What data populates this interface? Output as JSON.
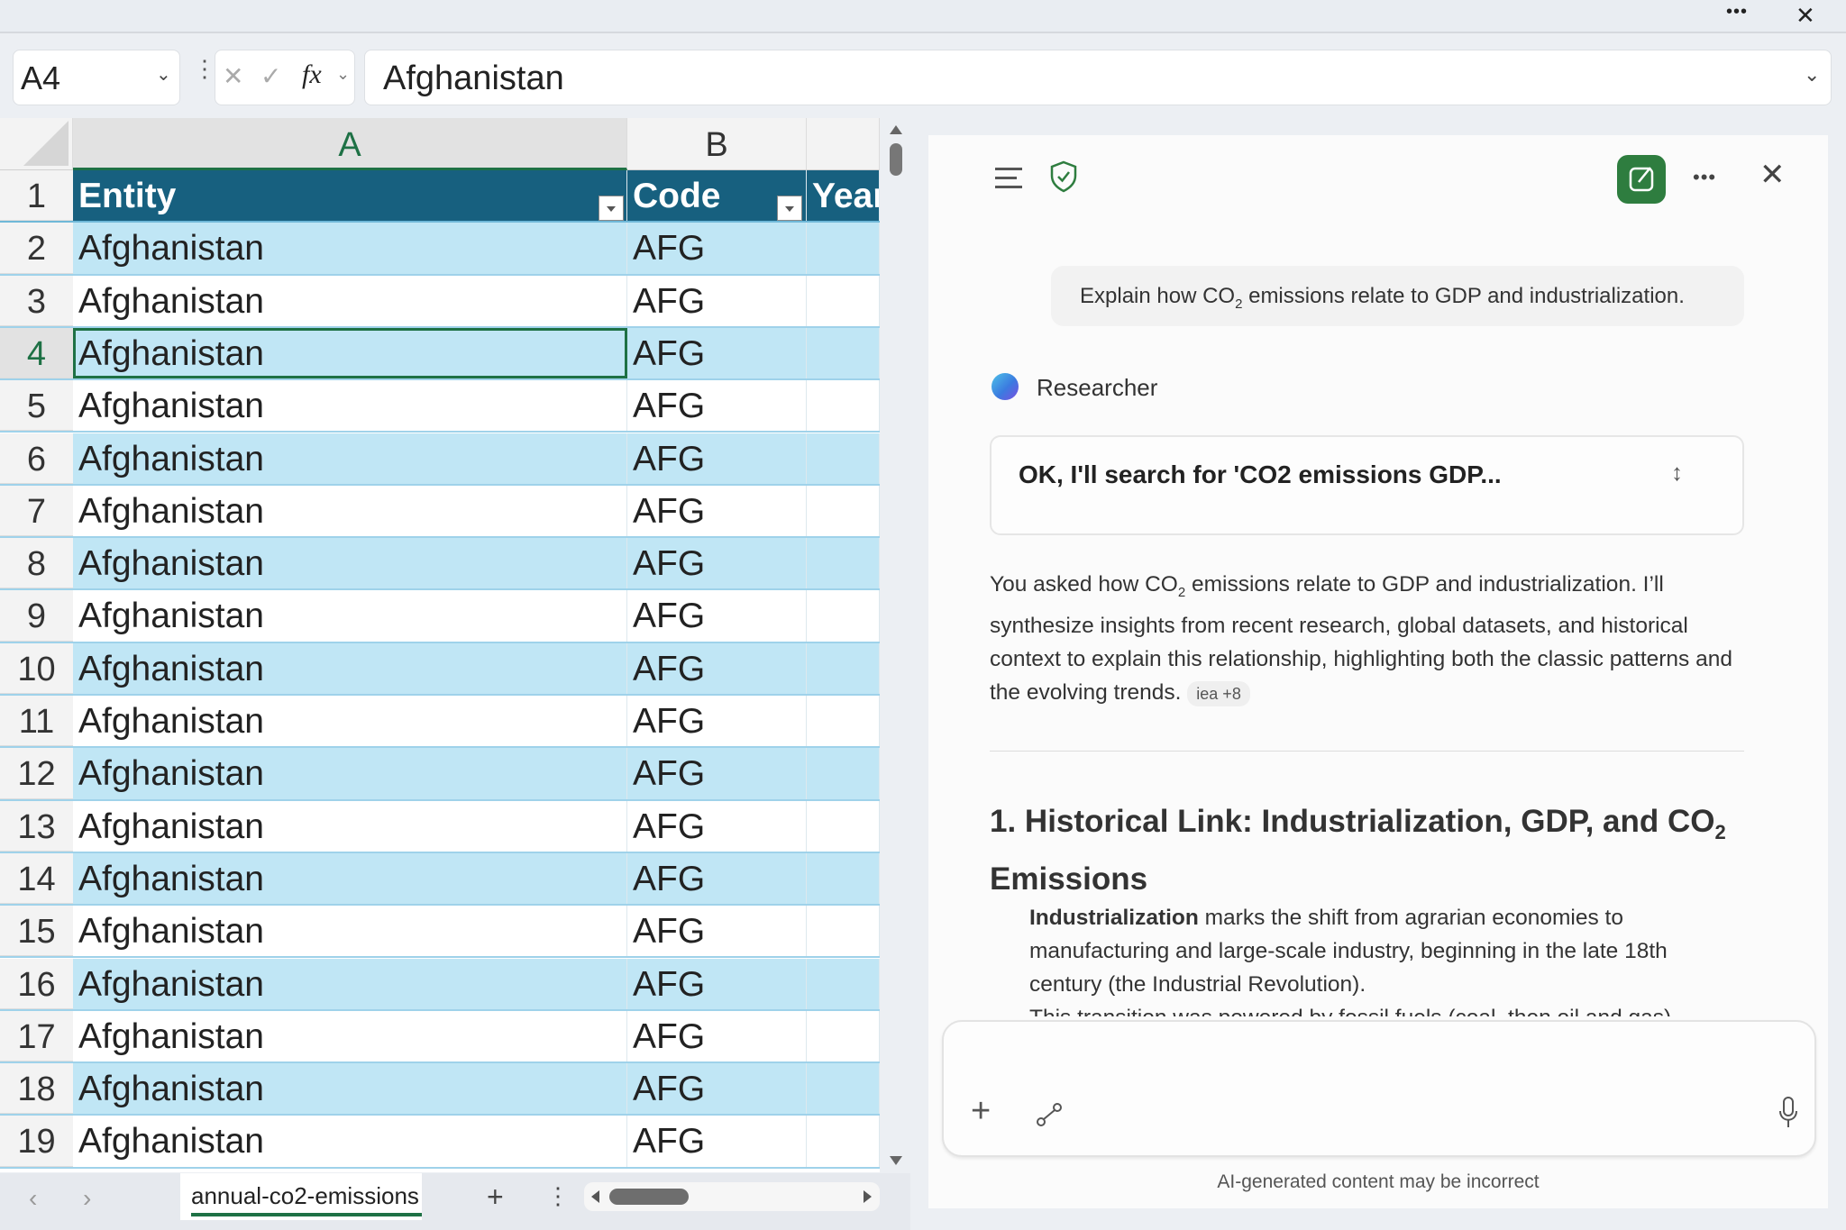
{
  "titlebar": {
    "more": "•••",
    "close": "✕"
  },
  "formula_bar": {
    "name_box": "A4",
    "cancel": "✕",
    "enter": "✓",
    "fx": "fx",
    "value": "Afghanistan"
  },
  "grid": {
    "columns": [
      "A",
      "B"
    ],
    "headers": [
      "Entity",
      "Code",
      "Year"
    ],
    "rows": [
      {
        "n": "2",
        "entity": "Afghanistan",
        "code": "AFG"
      },
      {
        "n": "3",
        "entity": "Afghanistan",
        "code": "AFG"
      },
      {
        "n": "4",
        "entity": "Afghanistan",
        "code": "AFG"
      },
      {
        "n": "5",
        "entity": "Afghanistan",
        "code": "AFG"
      },
      {
        "n": "6",
        "entity": "Afghanistan",
        "code": "AFG"
      },
      {
        "n": "7",
        "entity": "Afghanistan",
        "code": "AFG"
      },
      {
        "n": "8",
        "entity": "Afghanistan",
        "code": "AFG"
      },
      {
        "n": "9",
        "entity": "Afghanistan",
        "code": "AFG"
      },
      {
        "n": "10",
        "entity": "Afghanistan",
        "code": "AFG"
      },
      {
        "n": "11",
        "entity": "Afghanistan",
        "code": "AFG"
      },
      {
        "n": "12",
        "entity": "Afghanistan",
        "code": "AFG"
      },
      {
        "n": "13",
        "entity": "Afghanistan",
        "code": "AFG"
      },
      {
        "n": "14",
        "entity": "Afghanistan",
        "code": "AFG"
      },
      {
        "n": "15",
        "entity": "Afghanistan",
        "code": "AFG"
      },
      {
        "n": "16",
        "entity": "Afghanistan",
        "code": "AFG"
      },
      {
        "n": "17",
        "entity": "Afghanistan",
        "code": "AFG"
      },
      {
        "n": "18",
        "entity": "Afghanistan",
        "code": "AFG"
      },
      {
        "n": "19",
        "entity": "Afghanistan",
        "code": "AFG"
      }
    ],
    "header_row": "1",
    "selected_row": "4"
  },
  "sheets": {
    "active": "annual-co2-emissions",
    "add": "+"
  },
  "colors": {
    "table_header": "#17607f",
    "band": "#c0e6f5",
    "accent_green": "#2e7d3f"
  },
  "copilot": {
    "user_message_pre": "Explain how CO",
    "user_message_sub": "2",
    "user_message_post": " emissions relate to GDP and industrialization.",
    "agent_name": "Researcher",
    "status": "OK, I'll search for 'CO2 emissions GDP...",
    "para_pre": "You asked how CO",
    "para_sub": "2",
    "para_post": " emissions relate to GDP and industrialization. I’ll synthesize insights from recent research, global datasets, and historical context to explain this relationship, highlighting both the classic patterns and the evolving trends.",
    "citation": "iea +8",
    "heading_pre": "1. Historical Link: Industrialization, GDP, and CO",
    "heading_sub": "2",
    "heading_post": " Emissions",
    "bullet1_bold": "Industrialization",
    "bullet1_rest": " marks the shift from agrarian economies to manufacturing and large-scale industry, beginning in the late 18th century (the Industrial Revolution).",
    "bullet2": "This transition was powered by fossil fuels (coal, then oil and gas)",
    "disclaimer": "AI-generated content may be incorrect"
  }
}
